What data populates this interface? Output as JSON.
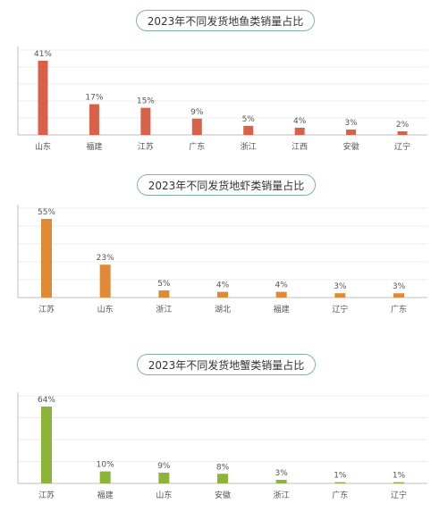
{
  "chart_data": [
    {
      "type": "bar",
      "title": "2023年不同发货地鱼类销量占比",
      "categories": [
        "山东",
        "福建",
        "江苏",
        "广东",
        "浙江",
        "江西",
        "安徽",
        "辽宁"
      ],
      "values": [
        41,
        17,
        15,
        9,
        5,
        4,
        3,
        2
      ],
      "labels": [
        "41%",
        "17%",
        "15%",
        "9%",
        "5%",
        "4%",
        "3%",
        "2%"
      ],
      "unit": "%",
      "ylim": [
        0,
        45
      ],
      "color": "#d9614a",
      "grid": true,
      "legend": "none"
    },
    {
      "type": "bar",
      "title": "2023年不同发货地虾类销量占比",
      "categories": [
        "江苏",
        "山东",
        "浙江",
        "湖北",
        "福建",
        "辽宁",
        "广东"
      ],
      "values": [
        55,
        23,
        5,
        4,
        4,
        3,
        3
      ],
      "labels": [
        "55%",
        "23%",
        "5%",
        "4%",
        "4%",
        "3%",
        "3%"
      ],
      "unit": "%",
      "ylim": [
        0,
        60
      ],
      "color": "#e08a35",
      "grid": true,
      "legend": "none"
    },
    {
      "type": "bar",
      "title": "2023年不同发货地蟹类销量占比",
      "categories": [
        "江苏",
        "福建",
        "山东",
        "安徽",
        "浙江",
        "广东",
        "辽宁"
      ],
      "values": [
        64,
        10,
        9,
        8,
        3,
        1,
        1
      ],
      "labels": [
        "64%",
        "10%",
        "9%",
        "8%",
        "3%",
        "1%",
        "1%"
      ],
      "unit": "%",
      "ylim": [
        0,
        75
      ],
      "color": "#8db43a",
      "grid": true,
      "legend": "none"
    }
  ]
}
